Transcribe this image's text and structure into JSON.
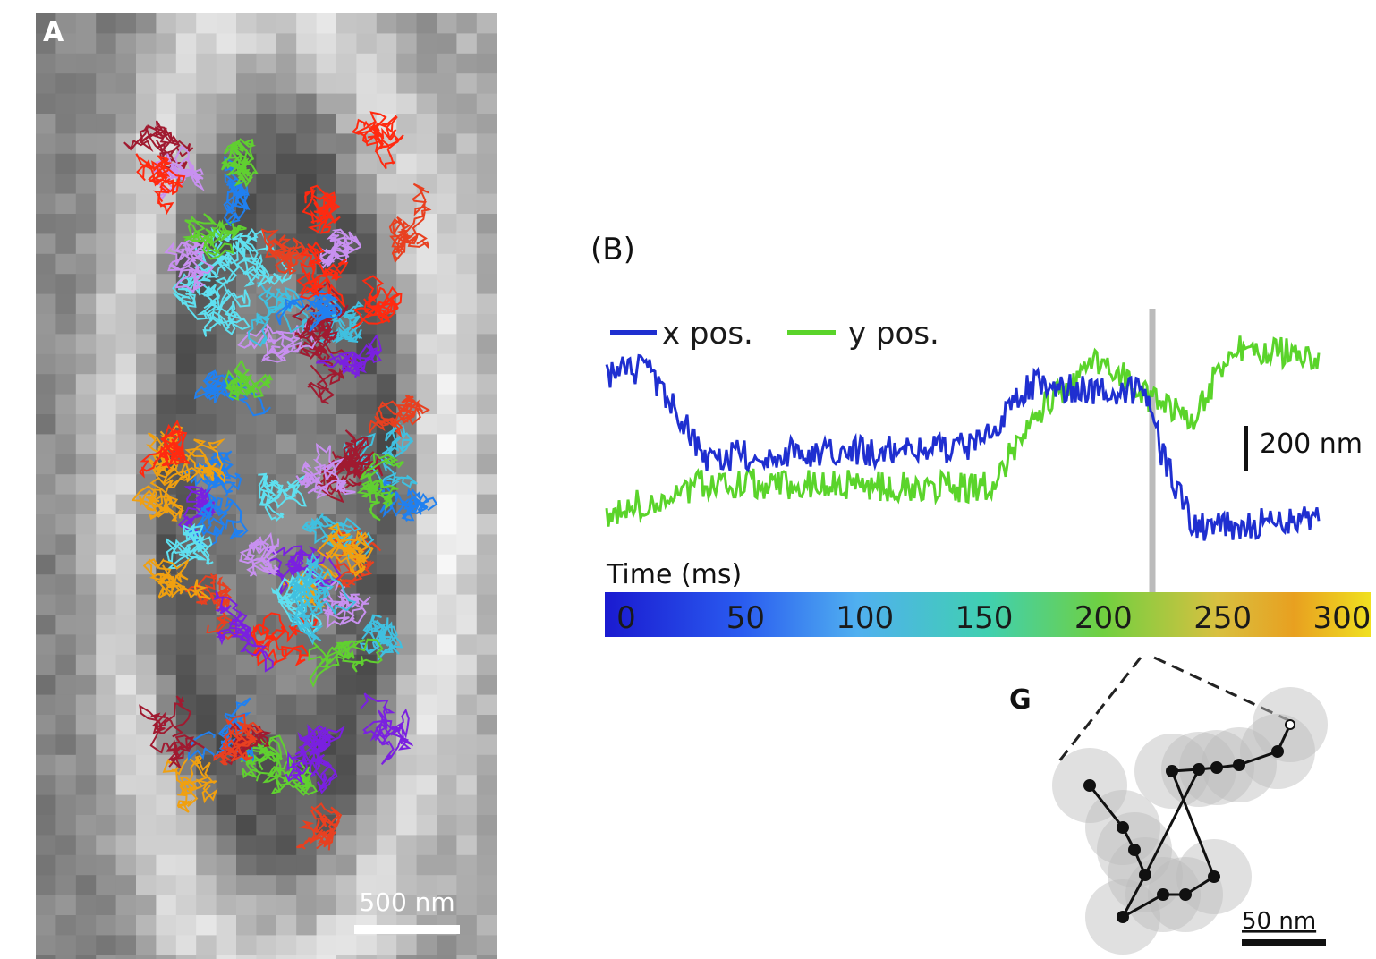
{
  "panel_a": {
    "label": "A",
    "scale_bar": "500 nm"
  },
  "panel_b": {
    "label": "(B)",
    "legend": [
      "x pos.",
      "y pos."
    ],
    "scale_bar": "200 nm",
    "colorbar": {
      "title": "Time (ms)",
      "ticks": [
        0,
        50,
        100,
        150,
        200,
        250,
        300
      ]
    }
  },
  "panel_g": {
    "label": "G",
    "scale_bar": "50 nm"
  }
}
